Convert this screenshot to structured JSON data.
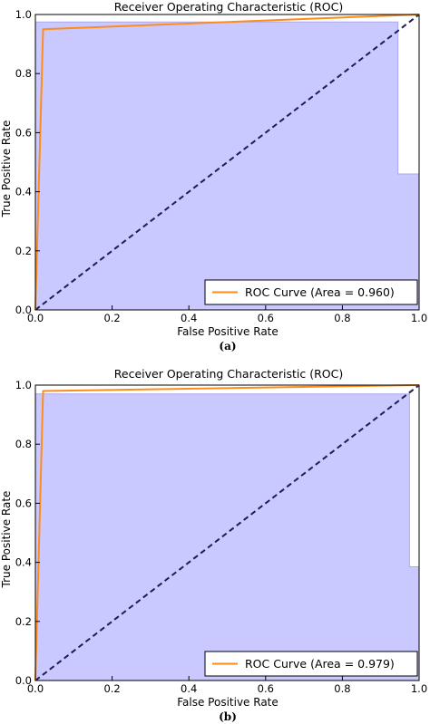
{
  "colors": {
    "roc_line": "#ff8c1a",
    "fill": "#c9c9ff",
    "fill_edge": "#a9a9ee",
    "diagonal": "#1b1b5e",
    "axis": "#000000"
  },
  "chart_data": [
    {
      "type": "line",
      "title": "Receiver Operating Characteristic (ROC)",
      "xlabel": "False Positive Rate",
      "ylabel": "True Positive Rate",
      "xlim": [
        0,
        1
      ],
      "ylim": [
        0,
        1
      ],
      "xticks": [
        "0.0",
        "0.2",
        "0.4",
        "0.6",
        "0.8",
        "1.0"
      ],
      "yticks": [
        "0.0",
        "0.2",
        "0.4",
        "0.6",
        "0.8",
        "1.0"
      ],
      "grid": false,
      "legend_position": "bottom-right",
      "caption": "(a)",
      "series": [
        {
          "name": "ROC Curve (Area = 0.960)",
          "x": [
            0.0,
            0.02,
            0.02,
            1.0
          ],
          "y": [
            0.0,
            0.95,
            0.95,
            1.0
          ]
        }
      ],
      "reference_line": {
        "x": [
          0,
          1
        ],
        "y": [
          0,
          1
        ]
      },
      "shaded_region": {
        "x": [
          0.0,
          0.0,
          0.945,
          0.945,
          1.0,
          1.0
        ],
        "y": [
          0.0,
          0.975,
          0.975,
          0.46,
          0.46,
          0.0
        ]
      }
    },
    {
      "type": "line",
      "title": "Receiver Operating Characteristic (ROC)",
      "xlabel": "False Positive Rate",
      "ylabel": "True Positive Rate",
      "xlim": [
        0,
        1
      ],
      "ylim": [
        0,
        1
      ],
      "xticks": [
        "0.0",
        "0.2",
        "0.4",
        "0.6",
        "0.8",
        "1.0"
      ],
      "yticks": [
        "0.0",
        "0.2",
        "0.4",
        "0.6",
        "0.8",
        "1.0"
      ],
      "grid": false,
      "legend_position": "bottom-right",
      "caption": "(b)",
      "series": [
        {
          "name": "ROC Curve (Area = 0.979)",
          "x": [
            0.0,
            0.02,
            0.02,
            1.0
          ],
          "y": [
            0.0,
            0.98,
            0.98,
            1.0
          ]
        }
      ],
      "reference_line": {
        "x": [
          0,
          1
        ],
        "y": [
          0,
          1
        ]
      },
      "shaded_region": {
        "x": [
          0.0,
          0.0,
          0.975,
          0.975,
          1.0,
          1.0
        ],
        "y": [
          0.0,
          0.97,
          0.97,
          0.385,
          0.385,
          0.0
        ]
      }
    }
  ]
}
